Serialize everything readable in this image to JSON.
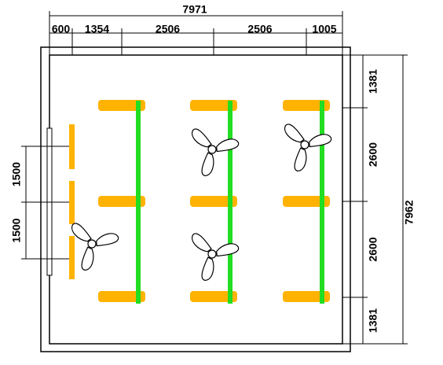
{
  "dimensions": {
    "top_total": "7971",
    "top": [
      "600",
      "1354",
      "2506",
      "2506",
      "1005"
    ],
    "right": [
      "1381",
      "2600",
      "2600",
      "1381"
    ],
    "right_total": "7962",
    "left": [
      "1500",
      "1500"
    ]
  }
}
